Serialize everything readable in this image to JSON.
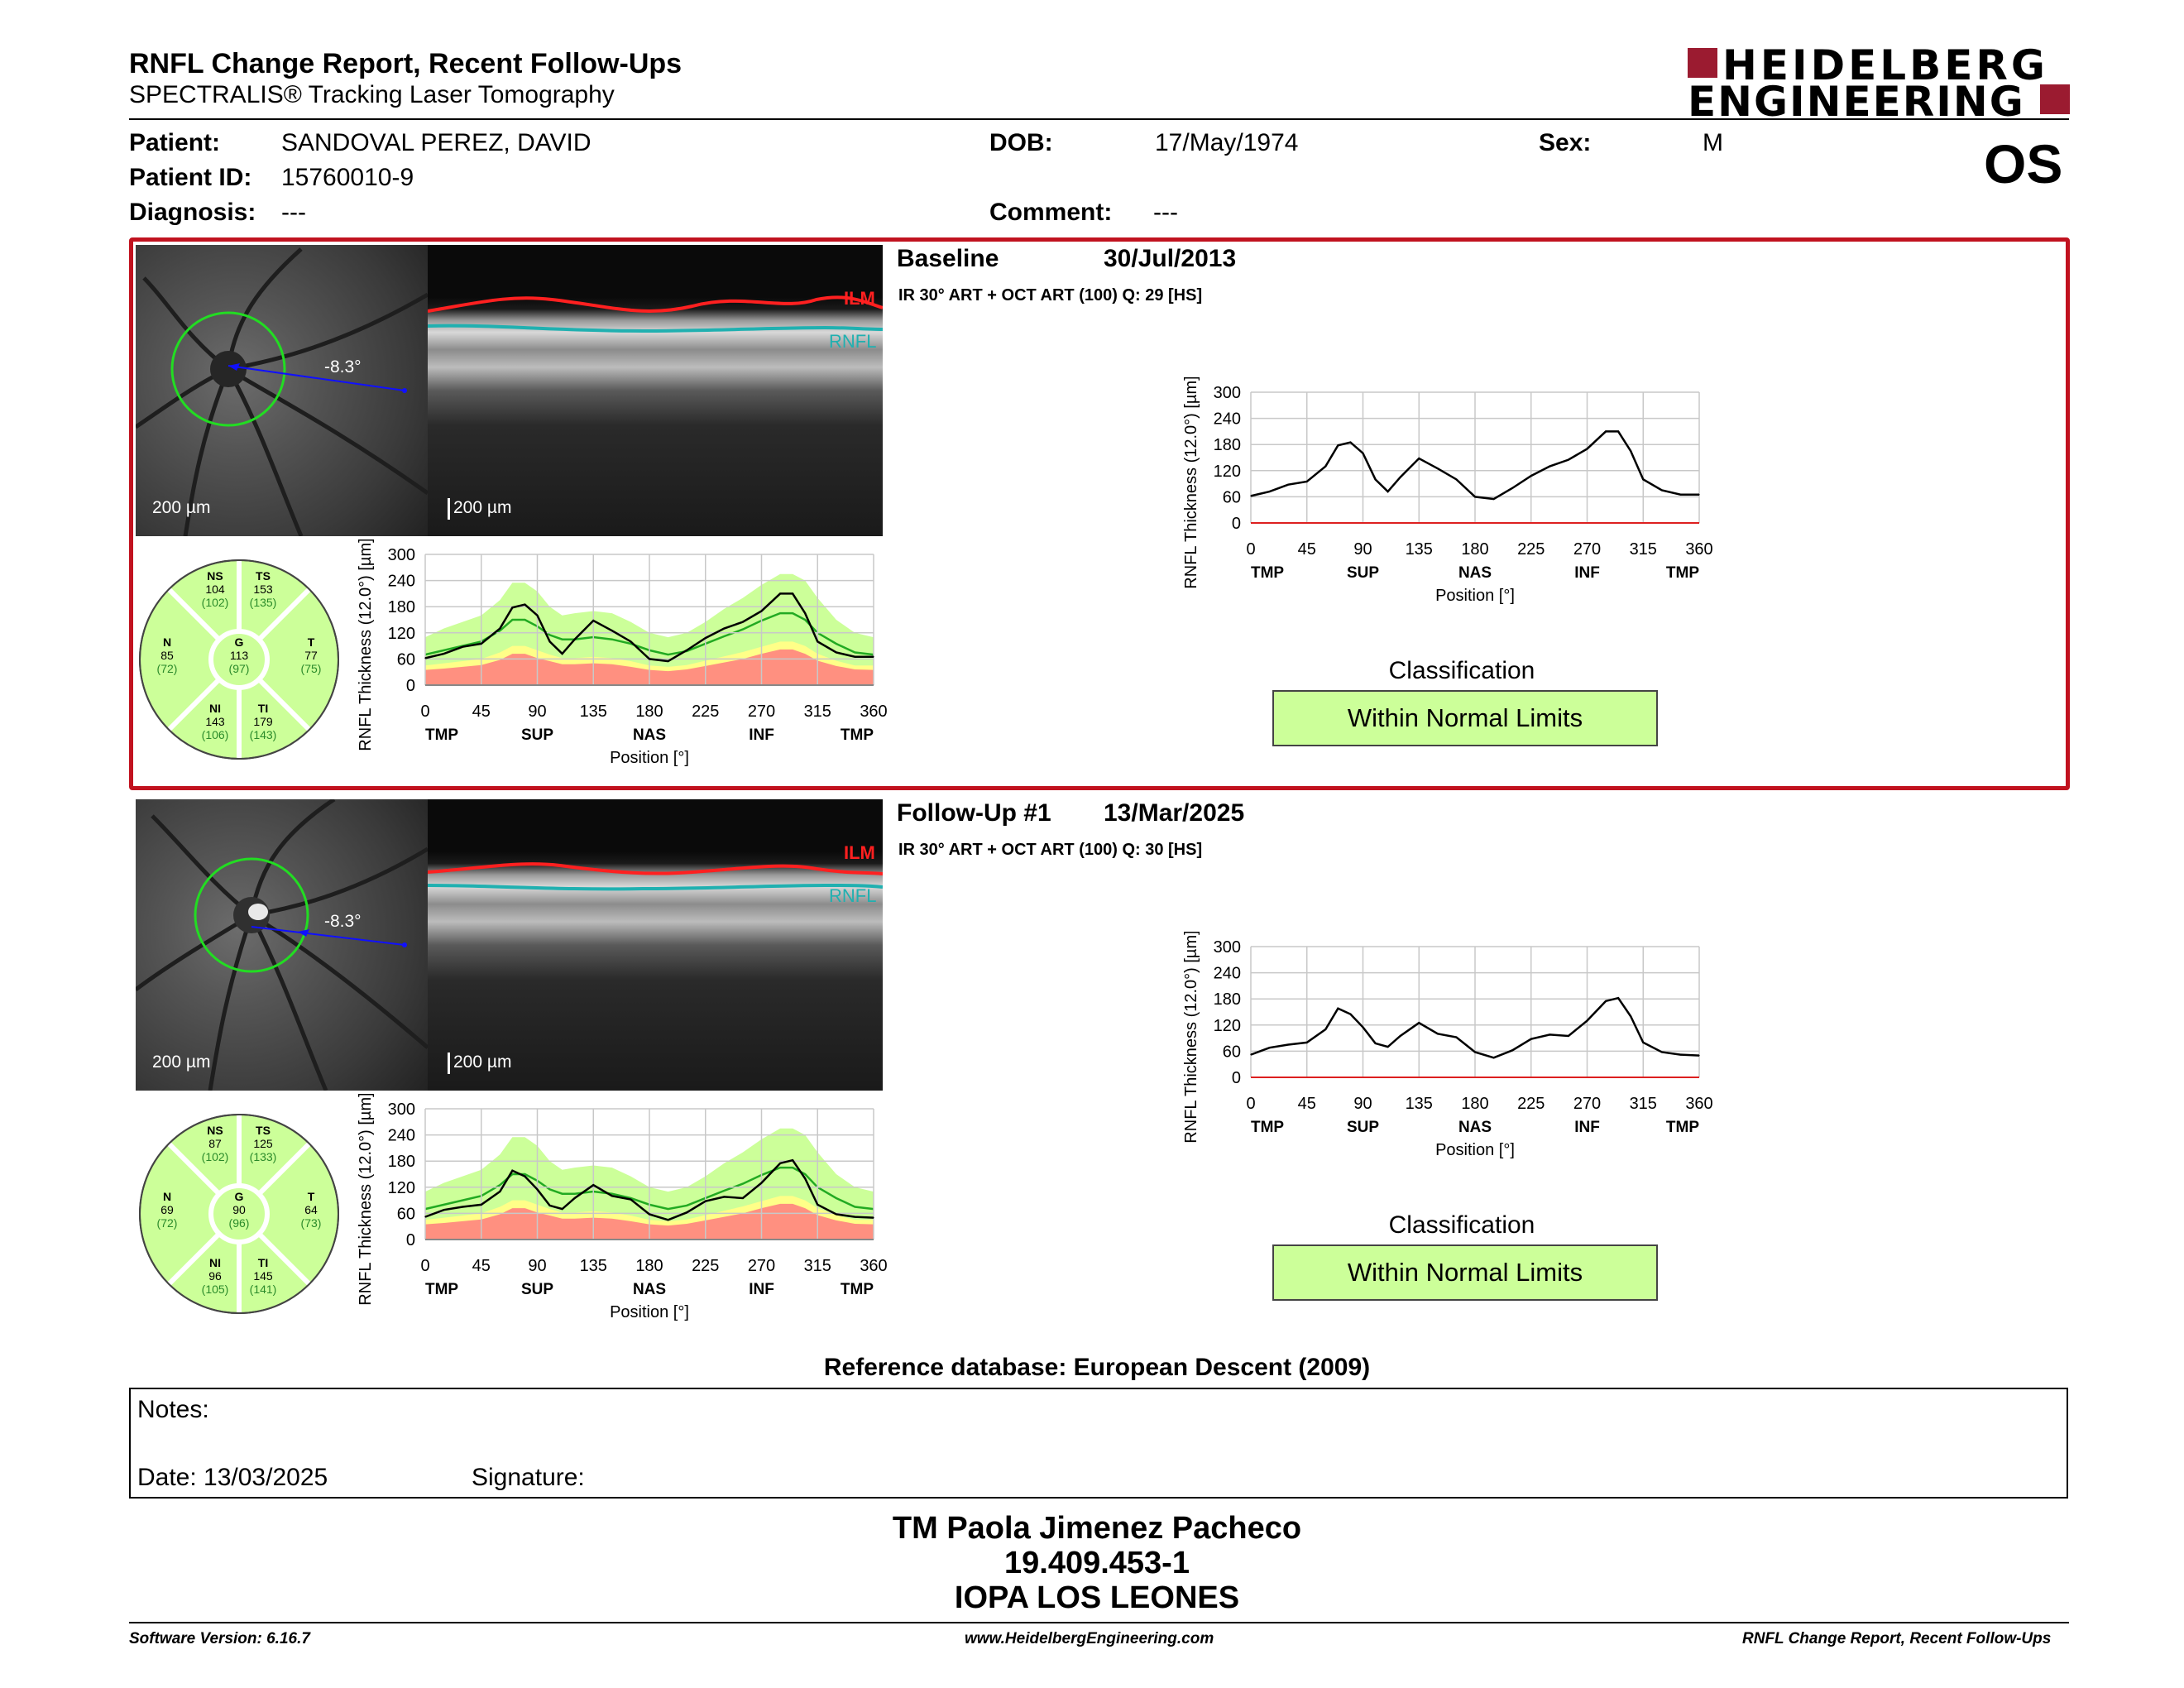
{
  "header": {
    "title": "RNFL Change Report, Recent Follow-Ups",
    "subtitle": "SPECTRALIS® Tracking Laser Tomography",
    "logo_line1": "HEIDELBERG",
    "logo_line2": "ENGINEERING",
    "eye": "OS"
  },
  "patient": {
    "patient_label": "Patient:",
    "patient_name": "SANDOVAL PEREZ, DAVID",
    "dob_label": "DOB:",
    "dob": "17/May/1974",
    "sex_label": "Sex:",
    "sex": "M",
    "id_label": "Patient ID:",
    "id": "15760010-9",
    "diagnosis_label": "Diagnosis:",
    "diagnosis": "---",
    "comment_label": "Comment:",
    "comment": "---"
  },
  "colors": {
    "frame": "#c1121f",
    "normal": "#ccff99",
    "ilm": "#ff2020",
    "rnfl": "#20b0b0"
  },
  "exams": [
    {
      "name": "Baseline",
      "date": "30/Jul/2013",
      "protocol": "IR 30° ART + OCT ART (100) Q: 29 [HS]",
      "angle": "-8.3°",
      "fundus_scale": "200 µm",
      "oct_scale": "200 µm",
      "ilm": "ILM",
      "rnfl": "RNFL",
      "classification_label": "Classification",
      "classification": "Within Normal Limits",
      "sectors": {
        "NS": {
          "label": "NS",
          "value": "104",
          "normal": "(102)"
        },
        "TS": {
          "label": "TS",
          "value": "153",
          "normal": "(135)"
        },
        "N": {
          "label": "N",
          "value": "85",
          "normal": "(72)"
        },
        "G": {
          "label": "G",
          "value": "113",
          "normal": "(97)"
        },
        "T": {
          "label": "T",
          "value": "77",
          "normal": "(75)"
        },
        "NI": {
          "label": "NI",
          "value": "143",
          "normal": "(106)"
        },
        "TI": {
          "label": "TI",
          "value": "179",
          "normal": "(143)"
        }
      }
    },
    {
      "name": "Follow-Up #1",
      "date": "13/Mar/2025",
      "protocol": "IR 30° ART + OCT ART (100) Q: 30 [HS]",
      "angle": "-8.3°",
      "fundus_scale": "200 µm",
      "oct_scale": "200 µm",
      "ilm": "ILM",
      "rnfl": "RNFL",
      "classification_label": "Classification",
      "classification": "Within Normal Limits",
      "sectors": {
        "NS": {
          "label": "NS",
          "value": "87",
          "normal": "(102)"
        },
        "TS": {
          "label": "TS",
          "value": "125",
          "normal": "(133)"
        },
        "N": {
          "label": "N",
          "value": "69",
          "normal": "(72)"
        },
        "G": {
          "label": "G",
          "value": "90",
          "normal": "(96)"
        },
        "T": {
          "label": "T",
          "value": "64",
          "normal": "(73)"
        },
        "NI": {
          "label": "NI",
          "value": "96",
          "normal": "(105)"
        },
        "TI": {
          "label": "TI",
          "value": "145",
          "normal": "(141)"
        }
      }
    }
  ],
  "chart_data": [
    {
      "type": "line",
      "ylabel": "RNFL Thickness (12.0°) [µm]",
      "xlabel": "Position [°]",
      "xlim": [
        0,
        360
      ],
      "ylim": [
        0,
        300
      ],
      "x_ticks": [
        "0",
        "45",
        "90",
        "135",
        "180",
        "225",
        "270",
        "315",
        "360"
      ],
      "y_ticks": [
        "0",
        "60",
        "120",
        "180",
        "240",
        "300"
      ],
      "region_labels": [
        "TMP",
        "SUP",
        "NAS",
        "INF",
        "TMP"
      ],
      "x": [
        0,
        15,
        30,
        45,
        60,
        70,
        80,
        90,
        100,
        110,
        120,
        135,
        150,
        165,
        180,
        195,
        210,
        225,
        240,
        255,
        270,
        285,
        295,
        305,
        315,
        330,
        345,
        360
      ],
      "series": [
        {
          "values": [
            62,
            72,
            88,
            95,
            130,
            178,
            185,
            160,
            100,
            72,
            105,
            148,
            125,
            100,
            60,
            55,
            80,
            108,
            130,
            145,
            170,
            210,
            210,
            165,
            100,
            75,
            65,
            65
          ]
        }
      ],
      "normal_band": {
        "upper": [
          110,
          130,
          145,
          160,
          195,
          235,
          235,
          215,
          180,
          160,
          165,
          170,
          165,
          145,
          120,
          110,
          120,
          145,
          175,
          200,
          230,
          255,
          255,
          240,
          200,
          150,
          120,
          110
        ],
        "mean": [
          70,
          80,
          90,
          100,
          125,
          150,
          150,
          135,
          115,
          105,
          105,
          110,
          105,
          95,
          80,
          70,
          78,
          95,
          112,
          128,
          148,
          165,
          165,
          150,
          120,
          95,
          75,
          70
        ],
        "borderline": [
          45,
          50,
          55,
          60,
          75,
          90,
          90,
          80,
          70,
          62,
          62,
          65,
          62,
          55,
          45,
          42,
          46,
          56,
          66,
          76,
          88,
          100,
          100,
          90,
          72,
          56,
          45,
          45
        ],
        "outside": [
          35,
          38,
          42,
          46,
          58,
          72,
          72,
          62,
          55,
          48,
          48,
          50,
          48,
          42,
          35,
          32,
          36,
          44,
          52,
          60,
          72,
          82,
          82,
          72,
          56,
          44,
          36,
          35
        ]
      }
    },
    {
      "type": "line",
      "ylabel": "RNFL Thickness (12.0°) [µm]",
      "xlabel": "Position [°]",
      "xlim": [
        0,
        360
      ],
      "ylim": [
        0,
        300
      ],
      "x_ticks": [
        "0",
        "45",
        "90",
        "135",
        "180",
        "225",
        "270",
        "315",
        "360"
      ],
      "y_ticks": [
        "0",
        "60",
        "120",
        "180",
        "240",
        "300"
      ],
      "region_labels": [
        "TMP",
        "SUP",
        "NAS",
        "INF",
        "TMP"
      ],
      "x": [
        0,
        15,
        30,
        45,
        60,
        70,
        80,
        90,
        100,
        110,
        120,
        135,
        150,
        165,
        180,
        195,
        210,
        225,
        240,
        255,
        270,
        285,
        295,
        305,
        315,
        330,
        345,
        360
      ],
      "series": [
        {
          "values": [
            62,
            72,
            88,
            95,
            130,
            178,
            185,
            160,
            100,
            72,
            105,
            148,
            125,
            100,
            60,
            55,
            80,
            108,
            130,
            145,
            170,
            210,
            210,
            165,
            100,
            75,
            65,
            65
          ]
        }
      ]
    },
    {
      "type": "line",
      "ylabel": "RNFL Thickness (12.0°) [µm]",
      "xlabel": "Position [°]",
      "xlim": [
        0,
        360
      ],
      "ylim": [
        0,
        300
      ],
      "x_ticks": [
        "0",
        "45",
        "90",
        "135",
        "180",
        "225",
        "270",
        "315",
        "360"
      ],
      "y_ticks": [
        "0",
        "60",
        "120",
        "180",
        "240",
        "300"
      ],
      "region_labels": [
        "TMP",
        "SUP",
        "NAS",
        "INF",
        "TMP"
      ],
      "x": [
        0,
        15,
        30,
        45,
        60,
        70,
        80,
        90,
        100,
        110,
        120,
        135,
        150,
        165,
        180,
        195,
        210,
        225,
        240,
        255,
        270,
        285,
        295,
        305,
        315,
        330,
        345,
        360
      ],
      "series": [
        {
          "values": [
            52,
            68,
            75,
            80,
            110,
            158,
            145,
            115,
            78,
            70,
            95,
            125,
            100,
            92,
            58,
            45,
            62,
            88,
            98,
            95,
            130,
            175,
            182,
            140,
            80,
            58,
            52,
            50
          ]
        }
      ],
      "normal_band": {
        "upper": [
          110,
          130,
          145,
          160,
          195,
          235,
          235,
          215,
          180,
          160,
          165,
          170,
          165,
          145,
          120,
          110,
          120,
          145,
          175,
          200,
          230,
          255,
          255,
          240,
          200,
          150,
          120,
          110
        ],
        "mean": [
          70,
          80,
          90,
          100,
          125,
          150,
          150,
          135,
          115,
          105,
          105,
          110,
          105,
          95,
          80,
          70,
          78,
          95,
          112,
          128,
          148,
          165,
          165,
          150,
          120,
          95,
          75,
          70
        ],
        "borderline": [
          45,
          50,
          55,
          60,
          75,
          90,
          90,
          80,
          70,
          62,
          62,
          65,
          62,
          55,
          45,
          42,
          46,
          56,
          66,
          76,
          88,
          100,
          100,
          90,
          72,
          56,
          45,
          45
        ],
        "outside": [
          35,
          38,
          42,
          46,
          58,
          72,
          72,
          62,
          55,
          48,
          48,
          50,
          48,
          42,
          35,
          32,
          36,
          44,
          52,
          60,
          72,
          82,
          82,
          72,
          56,
          44,
          36,
          35
        ]
      }
    },
    {
      "type": "line",
      "ylabel": "RNFL Thickness (12.0°) [µm]",
      "xlabel": "Position [°]",
      "xlim": [
        0,
        360
      ],
      "ylim": [
        0,
        300
      ],
      "x_ticks": [
        "0",
        "45",
        "90",
        "135",
        "180",
        "225",
        "270",
        "315",
        "360"
      ],
      "y_ticks": [
        "0",
        "60",
        "120",
        "180",
        "240",
        "300"
      ],
      "region_labels": [
        "TMP",
        "SUP",
        "NAS",
        "INF",
        "TMP"
      ],
      "x": [
        0,
        15,
        30,
        45,
        60,
        70,
        80,
        90,
        100,
        110,
        120,
        135,
        150,
        165,
        180,
        195,
        210,
        225,
        240,
        255,
        270,
        285,
        295,
        305,
        315,
        330,
        345,
        360
      ],
      "series": [
        {
          "values": [
            52,
            68,
            75,
            80,
            110,
            158,
            145,
            115,
            78,
            70,
            95,
            125,
            100,
            92,
            58,
            45,
            62,
            88,
            98,
            95,
            130,
            175,
            182,
            140,
            80,
            58,
            52,
            50
          ]
        }
      ]
    }
  ],
  "footer": {
    "reference_db": "Reference database: European Descent (2009)",
    "notes_label": "Notes:",
    "date_line": "Date: 13/03/2025",
    "signature_label": "Signature:",
    "stamp_name": "TM Paola Jimenez Pacheco",
    "stamp_id": "19.409.453-1",
    "stamp_org": "IOPA LOS LEONES",
    "software": "Software Version: 6.16.7",
    "website": "www.HeidelbergEngineering.com",
    "report_name": "RNFL Change Report, Recent Follow-Ups"
  }
}
